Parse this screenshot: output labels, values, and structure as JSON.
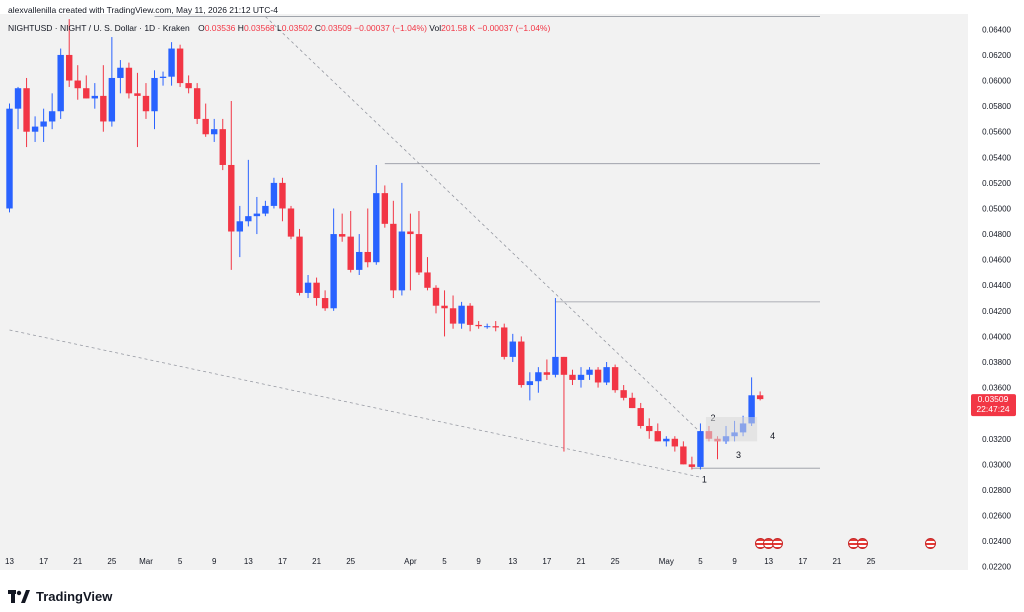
{
  "header": {
    "credit": "alexvallenilla created with TradingView.com, May 11, 2026 21:12 UTC-4",
    "symbol": "NIGHTUSD · NIGHT / U. S. Dollar · 1D · Kraken",
    "open_label": "O",
    "open": "0.03536",
    "high_label": "H",
    "high": "0.03568",
    "low_label": "L",
    "low": "0.03502",
    "close_label": "C",
    "close": "0.03509",
    "change": "−0.00037 (−1.04%)",
    "vol_label": "Vol",
    "vol": "201.58 K",
    "vol_change": "−0.00037 (−1.04%)"
  },
  "price_tag": {
    "price": "0.03509",
    "countdown": "22:47:24",
    "color": "#f23645"
  },
  "brand": {
    "name": "TradingView"
  },
  "colors": {
    "up": "#2962ff",
    "down": "#f23645",
    "background": "#f2f2f2",
    "guide": "#9598a1"
  },
  "chart_data": {
    "type": "candlestick",
    "title": "NIGHTUSD · NIGHT / U. S. Dollar · 1D · Kraken",
    "y_ticks": [
      "0.06400",
      "0.06200",
      "0.06000",
      "0.05800",
      "0.05600",
      "0.05400",
      "0.05200",
      "0.05000",
      "0.04800",
      "0.04600",
      "0.04400",
      "0.04200",
      "0.04000",
      "0.03800",
      "0.03600",
      "0.03400",
      "0.03200",
      "0.03000",
      "0.02800",
      "0.02600",
      "0.02400",
      "0.02200"
    ],
    "ylim": [
      0.0219,
      0.0652
    ],
    "x_ticks": [
      {
        "label": "13",
        "day": 0
      },
      {
        "label": "17",
        "day": 4
      },
      {
        "label": "21",
        "day": 8
      },
      {
        "label": "25",
        "day": 12
      },
      {
        "label": "Mar",
        "day": 16
      },
      {
        "label": "5",
        "day": 20
      },
      {
        "label": "9",
        "day": 24
      },
      {
        "label": "13",
        "day": 28
      },
      {
        "label": "17",
        "day": 32
      },
      {
        "label": "21",
        "day": 36
      },
      {
        "label": "25",
        "day": 40
      },
      {
        "label": "Apr",
        "day": 47
      },
      {
        "label": "5",
        "day": 51
      },
      {
        "label": "9",
        "day": 55
      },
      {
        "label": "13",
        "day": 59
      },
      {
        "label": "17",
        "day": 63
      },
      {
        "label": "21",
        "day": 67
      },
      {
        "label": "25",
        "day": 71
      },
      {
        "label": "May",
        "day": 77
      },
      {
        "label": "5",
        "day": 81
      },
      {
        "label": "9",
        "day": 85
      },
      {
        "label": "13",
        "day": 89
      },
      {
        "label": "17",
        "day": 93
      },
      {
        "label": "21",
        "day": 97
      },
      {
        "label": "25",
        "day": 101
      }
    ],
    "candles": [
      [
        0.05,
        0.0582,
        0.0497,
        0.0578
      ],
      [
        0.0578,
        0.0595,
        0.0562,
        0.0594
      ],
      [
        0.0594,
        0.0602,
        0.0548,
        0.056
      ],
      [
        0.056,
        0.0572,
        0.0552,
        0.0564
      ],
      [
        0.0564,
        0.0578,
        0.0552,
        0.0568
      ],
      [
        0.0568,
        0.059,
        0.0562,
        0.0576
      ],
      [
        0.0576,
        0.0625,
        0.057,
        0.062
      ],
      [
        0.062,
        0.0648,
        0.0595,
        0.06
      ],
      [
        0.06,
        0.0612,
        0.0585,
        0.0594
      ],
      [
        0.0594,
        0.0604,
        0.0586,
        0.0586
      ],
      [
        0.0586,
        0.0598,
        0.0578,
        0.0588
      ],
      [
        0.0588,
        0.0612,
        0.056,
        0.0568
      ],
      [
        0.0568,
        0.0634,
        0.0564,
        0.0602
      ],
      [
        0.0602,
        0.0616,
        0.059,
        0.061
      ],
      [
        0.061,
        0.0614,
        0.0586,
        0.059
      ],
      [
        0.059,
        0.0606,
        0.0548,
        0.0588
      ],
      [
        0.0588,
        0.0598,
        0.057,
        0.0576
      ],
      [
        0.0576,
        0.0608,
        0.0562,
        0.0602
      ],
      [
        0.0602,
        0.0607,
        0.0596,
        0.0603
      ],
      [
        0.0603,
        0.063,
        0.0596,
        0.0625
      ],
      [
        0.0625,
        0.0628,
        0.0595,
        0.0598
      ],
      [
        0.0598,
        0.0604,
        0.059,
        0.0594
      ],
      [
        0.0594,
        0.0598,
        0.0566,
        0.057
      ],
      [
        0.057,
        0.0582,
        0.0556,
        0.0558
      ],
      [
        0.0558,
        0.057,
        0.0552,
        0.0562
      ],
      [
        0.0562,
        0.057,
        0.053,
        0.0534
      ],
      [
        0.0534,
        0.0584,
        0.0452,
        0.0482
      ],
      [
        0.0482,
        0.0502,
        0.0462,
        0.049
      ],
      [
        0.049,
        0.0538,
        0.0486,
        0.0494
      ],
      [
        0.0494,
        0.0509,
        0.048,
        0.0496
      ],
      [
        0.0496,
        0.0506,
        0.0494,
        0.0502
      ],
      [
        0.0502,
        0.0524,
        0.05,
        0.052
      ],
      [
        0.052,
        0.0524,
        0.049,
        0.05
      ],
      [
        0.05,
        0.0502,
        0.0476,
        0.0478
      ],
      [
        0.0478,
        0.0484,
        0.0432,
        0.0434
      ],
      [
        0.0434,
        0.0448,
        0.043,
        0.0442
      ],
      [
        0.0442,
        0.0446,
        0.0424,
        0.043
      ],
      [
        0.043,
        0.0436,
        0.042,
        0.0422
      ],
      [
        0.0422,
        0.05,
        0.042,
        0.048
      ],
      [
        0.048,
        0.0496,
        0.0474,
        0.0478
      ],
      [
        0.0478,
        0.0498,
        0.045,
        0.0452
      ],
      [
        0.0452,
        0.048,
        0.0448,
        0.0466
      ],
      [
        0.0466,
        0.05,
        0.0454,
        0.0458
      ],
      [
        0.0458,
        0.0534,
        0.0456,
        0.0512
      ],
      [
        0.0512,
        0.0518,
        0.0485,
        0.0488
      ],
      [
        0.0488,
        0.0506,
        0.043,
        0.0436
      ],
      [
        0.0436,
        0.052,
        0.0432,
        0.0482
      ],
      [
        0.0482,
        0.0496,
        0.0436,
        0.048
      ],
      [
        0.048,
        0.0498,
        0.0448,
        0.045
      ],
      [
        0.045,
        0.0462,
        0.0436,
        0.0438
      ],
      [
        0.0438,
        0.044,
        0.0418,
        0.0424
      ],
      [
        0.0424,
        0.0436,
        0.04,
        0.0422
      ],
      [
        0.0422,
        0.0432,
        0.0406,
        0.041
      ],
      [
        0.041,
        0.0427,
        0.0406,
        0.0424
      ],
      [
        0.0424,
        0.0426,
        0.0404,
        0.0409
      ],
      [
        0.0409,
        0.0412,
        0.0406,
        0.0408
      ],
      [
        0.0408,
        0.041,
        0.0406,
        0.0408
      ],
      [
        0.0408,
        0.0412,
        0.0404,
        0.0407
      ],
      [
        0.0407,
        0.041,
        0.0382,
        0.0384
      ],
      [
        0.0384,
        0.0402,
        0.038,
        0.0396
      ],
      [
        0.0396,
        0.04,
        0.036,
        0.0362
      ],
      [
        0.0362,
        0.0372,
        0.035,
        0.0365
      ],
      [
        0.0365,
        0.0376,
        0.0356,
        0.0372
      ],
      [
        0.0372,
        0.0382,
        0.0366,
        0.037
      ],
      [
        0.037,
        0.043,
        0.0368,
        0.0384
      ],
      [
        0.0384,
        0.0384,
        0.031,
        0.037
      ],
      [
        0.037,
        0.0374,
        0.0362,
        0.0366
      ],
      [
        0.0366,
        0.0376,
        0.036,
        0.037
      ],
      [
        0.037,
        0.0376,
        0.0366,
        0.0374
      ],
      [
        0.0374,
        0.0376,
        0.036,
        0.0364
      ],
      [
        0.0364,
        0.038,
        0.0362,
        0.0376
      ],
      [
        0.0376,
        0.0378,
        0.0356,
        0.0358
      ],
      [
        0.0358,
        0.0362,
        0.035,
        0.0352
      ],
      [
        0.0352,
        0.0356,
        0.0344,
        0.0344
      ],
      [
        0.0344,
        0.0348,
        0.0328,
        0.033
      ],
      [
        0.033,
        0.0336,
        0.032,
        0.0326
      ],
      [
        0.0326,
        0.0332,
        0.0318,
        0.0318
      ],
      [
        0.0318,
        0.0322,
        0.0314,
        0.032
      ],
      [
        0.032,
        0.0322,
        0.031,
        0.0314
      ],
      [
        0.0314,
        0.0318,
        0.03,
        0.03
      ],
      [
        0.03,
        0.0306,
        0.0296,
        0.0298
      ],
      [
        0.0298,
        0.0332,
        0.0296,
        0.0326
      ],
      [
        0.0326,
        0.033,
        0.0318,
        0.032
      ],
      [
        0.032,
        0.0322,
        0.0304,
        0.0318
      ],
      [
        0.0318,
        0.033,
        0.0316,
        0.0322
      ],
      [
        0.0322,
        0.0334,
        0.0318,
        0.0325
      ],
      [
        0.0325,
        0.0338,
        0.0322,
        0.0332
      ],
      [
        0.0332,
        0.0368,
        0.033,
        0.0354
      ],
      [
        0.0354,
        0.0357,
        0.035,
        0.0351
      ]
    ],
    "annotations": [
      {
        "label": "1",
        "day": 81,
        "price": 0.0289
      },
      {
        "label": "2",
        "day": 82,
        "price": 0.0337
      },
      {
        "label": "3",
        "day": 85,
        "price": 0.0308
      },
      {
        "label": "4",
        "day": 89,
        "price": 0.0323
      }
    ],
    "horizontal_lines": [
      {
        "price": 0.065,
        "from_day": 17
      },
      {
        "price": 0.0535,
        "from_day": 44
      },
      {
        "price": 0.0427,
        "from_day": 64
      },
      {
        "price": 0.0297,
        "from_day": 80
      }
    ],
    "trendlines": [
      {
        "from": [
          30,
          0.065
        ],
        "to": [
          81,
          0.0325
        ]
      },
      {
        "from": [
          0,
          0.0405
        ],
        "to": [
          81,
          0.029
        ]
      }
    ],
    "event_markers": [
      {
        "day": 88
      },
      {
        "day": 89
      },
      {
        "day": 90
      },
      {
        "day": 99
      },
      {
        "day": 100
      },
      {
        "day": 108
      }
    ],
    "x_axis": "1D",
    "grid": false,
    "legend": "top-left"
  }
}
